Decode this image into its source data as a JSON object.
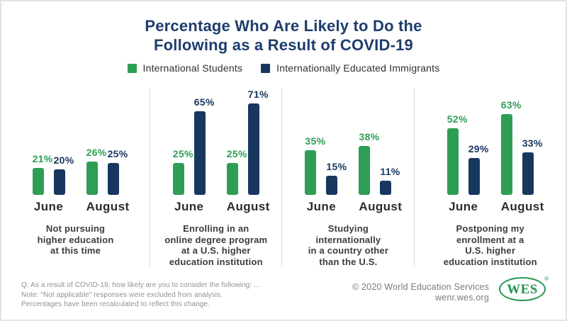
{
  "title": {
    "text": "Percentage Who Are Likely to Do the\nFollowing as a Result of COVID-19"
  },
  "colors": {
    "green": "#2e9e55",
    "navy": "#17375f",
    "title": "#1e3d6d",
    "legend-text": "#2f2f2f",
    "month": "#2b2b2b",
    "caption": "#3c3c3c",
    "divider": "#d9d9d9",
    "footnote": "#909090",
    "footer": "#7c7c7c",
    "logo-green": "#23954d",
    "card-border": "#e3e3e3"
  },
  "legend": {
    "items": [
      {
        "label": "International Students",
        "color": "#2e9e55"
      },
      {
        "label": "Internationally Educated Immigrants",
        "color": "#17375f"
      }
    ]
  },
  "chart_data": {
    "type": "bar",
    "unit": "%",
    "title": "Percentage Who Are Likely to Do the Following as a Result of COVID-19",
    "categories": [
      "June",
      "August"
    ],
    "series_names": [
      "International Students",
      "Internationally Educated Immigrants"
    ],
    "ylim": [
      0,
      80
    ],
    "grid": false,
    "legend_position": "top",
    "groups": [
      {
        "caption": "Not pursuing\nhigher education\nat this time",
        "clusters": [
          {
            "month": "June",
            "bars": [
              {
                "series": "International Students",
                "value": 21,
                "label": "21%"
              },
              {
                "series": "Internationally Educated Immigrants",
                "value": 20,
                "label": "20%"
              }
            ]
          },
          {
            "month": "August",
            "bars": [
              {
                "series": "International Students",
                "value": 26,
                "label": "26%"
              },
              {
                "series": "Internationally Educated Immigrants",
                "value": 25,
                "label": "25%"
              }
            ]
          }
        ]
      },
      {
        "caption": "Enrolling in an\nonline degree program\nat a U.S. higher\neducation institution",
        "clusters": [
          {
            "month": "June",
            "bars": [
              {
                "series": "International Students",
                "value": 25,
                "label": "25%"
              },
              {
                "series": "Internationally Educated Immigrants",
                "value": 65,
                "label": "65%"
              }
            ]
          },
          {
            "month": "August",
            "bars": [
              {
                "series": "International Students",
                "value": 25,
                "label": "25%"
              },
              {
                "series": "Internationally Educated Immigrants",
                "value": 71,
                "label": "71%"
              }
            ]
          }
        ]
      },
      {
        "caption": "Studying\ninternationally\nin a country other\nthan the U.S.",
        "clusters": [
          {
            "month": "June",
            "bars": [
              {
                "series": "International Students",
                "value": 35,
                "label": "35%"
              },
              {
                "series": "Internationally Educated Immigrants",
                "value": 15,
                "label": "15%"
              }
            ]
          },
          {
            "month": "August",
            "bars": [
              {
                "series": "International Students",
                "value": 38,
                "label": "38%"
              },
              {
                "series": "Internationally Educated Immigrants",
                "value": 11,
                "label": "11%"
              }
            ]
          }
        ]
      },
      {
        "caption": "Postponing my\nenrollment at a\nU.S. higher\neducation institution",
        "clusters": [
          {
            "month": "June",
            "bars": [
              {
                "series": "International Students",
                "value": 52,
                "label": "52%"
              },
              {
                "series": "Internationally Educated Immigrants",
                "value": 29,
                "label": "29%"
              }
            ]
          },
          {
            "month": "August",
            "bars": [
              {
                "series": "International Students",
                "value": 63,
                "label": "63%"
              },
              {
                "series": "Internationally Educated Immigrants",
                "value": 33,
                "label": "33%"
              }
            ]
          }
        ]
      }
    ]
  },
  "footnote": {
    "lines": [
      "Q: As a result of COVID-19, how likely are you to consider the following: ...",
      "Note: \"Not applicable\" responses were excluded from analysis.",
      "Percentages have been recalculated to reflect this change."
    ]
  },
  "footer": {
    "copyright": "© 2020 World Education Services",
    "website": "wenr.wes.org",
    "logo_text": "WES",
    "registered_mark": "®"
  }
}
